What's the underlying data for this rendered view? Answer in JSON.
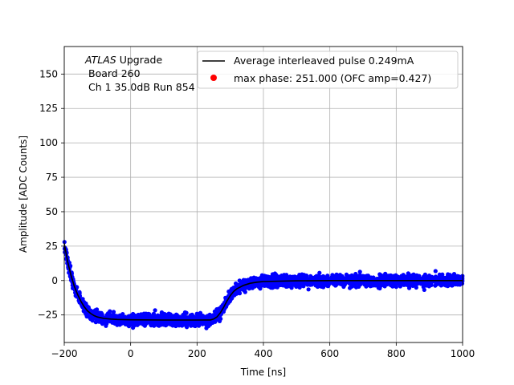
{
  "chart_data": {
    "type": "scatter",
    "xlabel": "Time [ns]",
    "ylabel": "Amplitude [ADC Counts]",
    "xlim": [
      -200,
      1000
    ],
    "ylim": [
      -45,
      170
    ],
    "x_ticks": [
      -200,
      0,
      200,
      400,
      600,
      800,
      1000
    ],
    "y_ticks": [
      -25,
      0,
      25,
      50,
      75,
      100,
      125,
      150
    ],
    "grid": true,
    "legend_position": "top-right",
    "annotation": {
      "experiment": "ATLAS",
      "experiment_suffix": "Upgrade",
      "line2": "Board 260",
      "line3": "Ch 1 35.0dB  Run 854"
    },
    "series": [
      {
        "name": "Average interleaved pulse 0.249mA",
        "kind": "line",
        "color": "#000000",
        "x": [
          -200,
          -190,
          -180,
          -170,
          -160,
          -150,
          -140,
          -130,
          -120,
          -110,
          -100,
          -80,
          -60,
          -40,
          0,
          100,
          200,
          240,
          250,
          260,
          270,
          280,
          290,
          300,
          310,
          320,
          340,
          360,
          380,
          400,
          450,
          500,
          600,
          800,
          1000
        ],
        "y": [
          27,
          14,
          4,
          -4,
          -10,
          -15,
          -19,
          -22,
          -24,
          -25.5,
          -26.5,
          -27.5,
          -28,
          -28.3,
          -28.5,
          -28.7,
          -28.7,
          -28.6,
          -28,
          -26.5,
          -23.5,
          -19.5,
          -15,
          -11,
          -8,
          -6,
          -3.5,
          -2,
          -1.2,
          -0.7,
          -0.4,
          -0.2,
          0,
          0,
          0
        ]
      },
      {
        "name": "",
        "kind": "scatter",
        "color": "#0000ff",
        "noise_amplitude": 3.5
      },
      {
        "name": "max phase: 251.000 (OFC amp=0.427)",
        "kind": "marker",
        "color": "#ff0000"
      }
    ]
  }
}
